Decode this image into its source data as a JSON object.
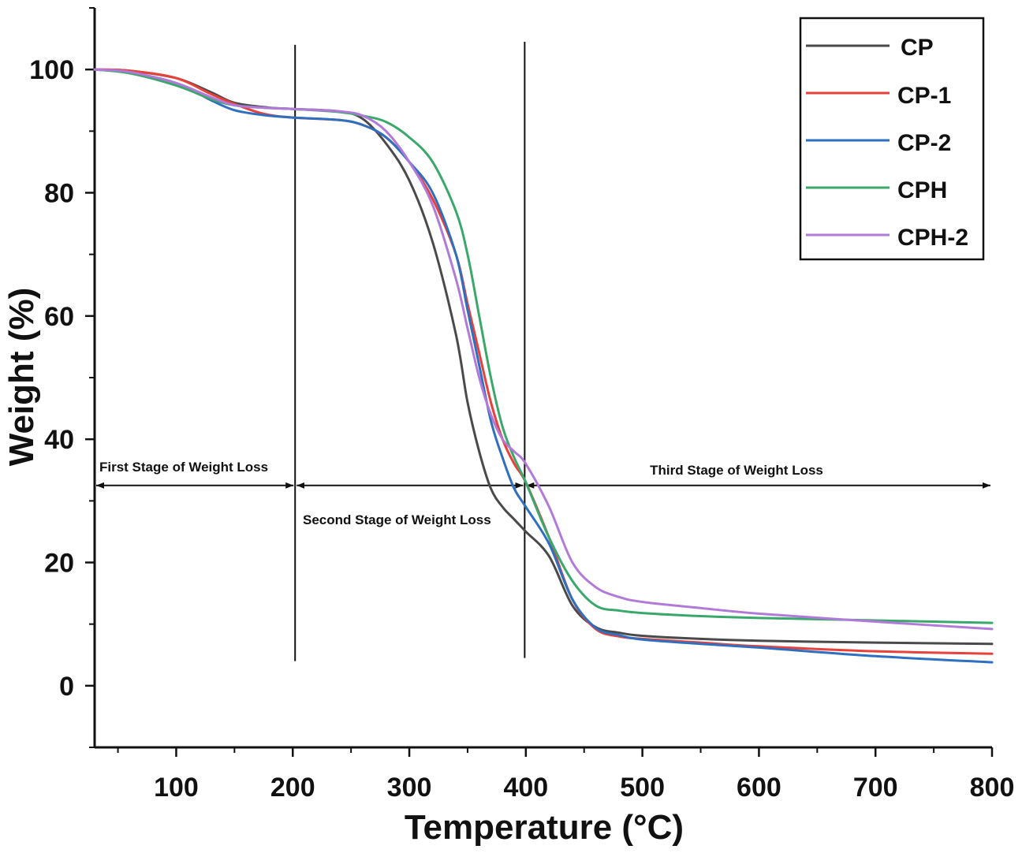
{
  "chart_data": {
    "type": "line",
    "title": "",
    "xlabel": "Temperature (°C)",
    "ylabel": "Weight (%)",
    "xlim": [
      30,
      800
    ],
    "ylim": [
      -10,
      110
    ],
    "xticks": [
      100,
      200,
      300,
      400,
      500,
      600,
      700,
      800
    ],
    "yticks": [
      0,
      20,
      40,
      60,
      80,
      100
    ],
    "legend_position": "top-right",
    "series": [
      {
        "name": "CP",
        "color": "#4a4a4a",
        "x": [
          30,
          60,
          100,
          130,
          150,
          180,
          200,
          240,
          260,
          280,
          300,
          320,
          340,
          350,
          360,
          370,
          380,
          390,
          400,
          420,
          440,
          460,
          480,
          500,
          550,
          600,
          700,
          800
        ],
        "y": [
          100,
          99.8,
          98.6,
          96.3,
          94.6,
          93.8,
          93.6,
          93.2,
          92,
          88,
          82,
          72,
          57,
          46,
          38,
          32,
          29,
          27,
          25,
          21,
          13,
          9.5,
          8.6,
          8.1,
          7.6,
          7.3,
          7.0,
          6.8
        ]
      },
      {
        "name": "CP-1",
        "color": "#e8403a",
        "x": [
          30,
          60,
          100,
          130,
          150,
          175,
          200,
          240,
          260,
          280,
          300,
          320,
          340,
          350,
          360,
          370,
          380,
          390,
          400,
          420,
          440,
          460,
          480,
          500,
          550,
          600,
          700,
          800
        ],
        "y": [
          100,
          99.8,
          98.6,
          96,
          94.4,
          92.8,
          92.2,
          91.8,
          91,
          89,
          85,
          79,
          70,
          62,
          54,
          46,
          40,
          36,
          33,
          24,
          14,
          9.2,
          8,
          7.6,
          7,
          6.4,
          5.6,
          5.2
        ]
      },
      {
        "name": "CP-2",
        "color": "#2e6fbf",
        "x": [
          30,
          60,
          100,
          130,
          150,
          175,
          200,
          240,
          260,
          280,
          300,
          320,
          340,
          350,
          360,
          370,
          380,
          390,
          400,
          420,
          440,
          460,
          480,
          500,
          550,
          600,
          700,
          800
        ],
        "y": [
          100,
          99.5,
          97.8,
          95,
          93.4,
          92.6,
          92.2,
          91.8,
          91,
          89,
          85,
          80,
          70,
          61,
          52,
          43,
          37,
          32,
          29,
          23,
          14,
          9.4,
          8.2,
          7.5,
          6.8,
          6.2,
          4.8,
          3.8
        ]
      },
      {
        "name": "CPH",
        "color": "#3aa86a",
        "x": [
          30,
          60,
          100,
          130,
          150,
          175,
          200,
          240,
          260,
          280,
          300,
          320,
          340,
          350,
          360,
          370,
          380,
          390,
          400,
          420,
          440,
          460,
          480,
          500,
          550,
          600,
          700,
          800
        ],
        "y": [
          100,
          99.4,
          97.4,
          95.2,
          94.2,
          93.8,
          93.6,
          93.1,
          92.5,
          91.5,
          89,
          85,
          77,
          70,
          60,
          50,
          42,
          37,
          33,
          24,
          17,
          13,
          12.2,
          11.8,
          11.3,
          11,
          10.6,
          10.2
        ]
      },
      {
        "name": "CPH-2",
        "color": "#b27ad8",
        "x": [
          30,
          60,
          100,
          130,
          150,
          175,
          200,
          240,
          260,
          280,
          300,
          320,
          340,
          350,
          360,
          370,
          380,
          390,
          400,
          420,
          440,
          460,
          480,
          500,
          550,
          600,
          700,
          800
        ],
        "y": [
          100,
          99.6,
          97.8,
          95.5,
          94.2,
          93.8,
          93.6,
          93.2,
          92.5,
          90,
          85,
          78,
          66,
          58,
          50,
          44,
          40,
          38,
          36,
          29,
          20,
          16,
          14.4,
          13.6,
          12.6,
          11.7,
          10.4,
          9.2
        ]
      }
    ],
    "annotations": [
      {
        "text": "First Stage of Weight Loss"
      },
      {
        "text": "Second Stage of Weight Loss"
      },
      {
        "text": "Third Stage of Weight Loss"
      }
    ],
    "stage_boundaries_x": [
      202,
      399
    ],
    "stage_arrow_y": 32.5
  }
}
